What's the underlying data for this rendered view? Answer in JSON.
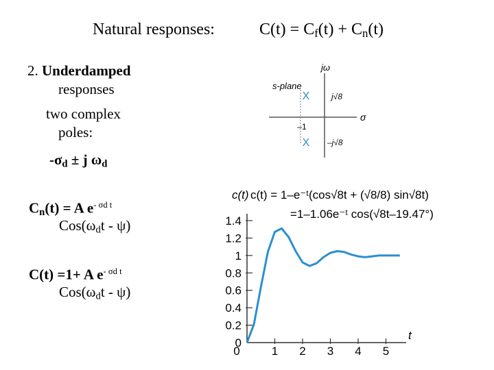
{
  "heading": {
    "title": "Natural responses:",
    "eq_c": "C(t) = C",
    "eq_f": "f",
    "eq_mid": "(t) + C",
    "eq_n": "n",
    "eq_end": "(t)"
  },
  "section": {
    "number": "2.",
    "title": "Underdamped",
    "title_cont": "responses",
    "line1": "two complex",
    "line2": "poles:",
    "poles": "-σ",
    "poles_sub": "d",
    "poles_rest": " ± j ω",
    "poles_sub2": "d"
  },
  "cn_eq": {
    "lhs": "C",
    "lhs_sub": "n",
    "rhs": "(t) = A e",
    "exp": "- σd t",
    "line2_a": "Cos(ω",
    "line2_sub": "d",
    "line2_b": "t - ψ)"
  },
  "c_eq": {
    "lhs": "C(t) =1+ A e",
    "exp": "- σd t",
    "line2_a": "Cos(ω",
    "line2_sub": "d",
    "line2_b": "t - ψ)"
  },
  "splane": {
    "label": "s-plane",
    "axis_imag": "jω",
    "axis_real": "σ",
    "upper_pole_label": "j√8",
    "lower_pole_label": "–j√8",
    "real_tick": "–1",
    "pole_marker": "X"
  },
  "chart_data": {
    "type": "line",
    "ylabel": "c(t)",
    "xlabel": "t",
    "equation_line1": "c(t) = 1–e⁻ᵗ(cos√8t + (√8/8) sin√8t)",
    "equation_line2": "=1–1.06e⁻ᵗ cos(√8t–19.47°)",
    "y_ticks": [
      "1.4",
      "1.2",
      "1",
      "0.8",
      "0.6",
      "0.4",
      "0.2",
      "0"
    ],
    "x_ticks": [
      "1",
      "2",
      "3",
      "4",
      "5"
    ],
    "xlim": [
      0,
      5.5
    ],
    "ylim": [
      0,
      1.5
    ],
    "line_color": "#2a8fd0",
    "series": [
      {
        "x": [
          0,
          0.25,
          0.5,
          0.75,
          1.0,
          1.25,
          1.5,
          1.75,
          2.0,
          2.25,
          2.5,
          2.75,
          3.0,
          3.25,
          3.5,
          3.75,
          4.0,
          4.25,
          4.5,
          4.75,
          5.0,
          5.25,
          5.5
        ],
        "y": [
          0,
          0.21,
          0.64,
          1.04,
          1.27,
          1.31,
          1.21,
          1.05,
          0.92,
          0.88,
          0.91,
          0.98,
          1.03,
          1.05,
          1.04,
          1.01,
          0.99,
          0.98,
          0.99,
          1.0,
          1.0,
          1.0,
          1.0
        ]
      }
    ]
  }
}
